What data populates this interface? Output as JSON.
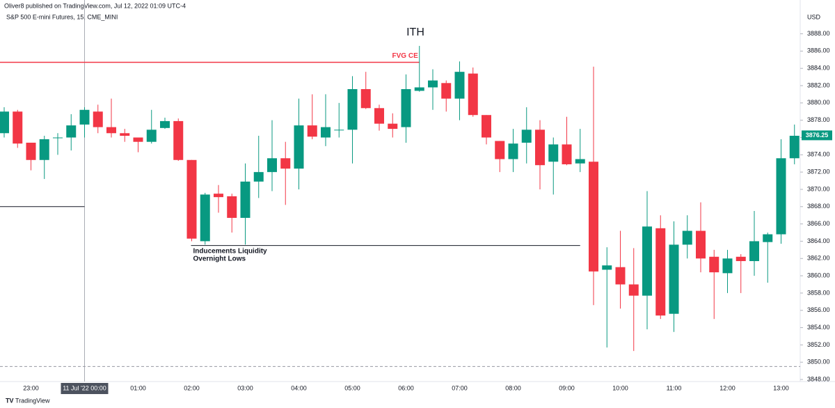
{
  "chart_data": {
    "type": "candlestick",
    "header": "Oliver8 published on TradingView.com, Jul 12, 2022 01:09 UTC-4",
    "subtitle": "S&P 500 E-mini Futures, 15, CME_MINI",
    "title": "ITH",
    "currency": "USD",
    "footer": "TradingView",
    "up_color": "#089981",
    "down_color": "#f23645",
    "grid": false,
    "categories": [
      null,
      null,
      "23:00",
      null,
      null,
      null,
      "00:00",
      null,
      null,
      null,
      "01:00",
      null,
      null,
      null,
      "02:00",
      null,
      null,
      null,
      "03:00",
      null,
      null,
      null,
      "04:00",
      null,
      null,
      null,
      "05:00",
      null,
      null,
      null,
      "06:00",
      null,
      null,
      null,
      "07:00",
      null,
      null,
      null,
      "08:00",
      null,
      null,
      null,
      "09:00",
      null,
      null,
      null,
      "10:00",
      null,
      null,
      null,
      "11:00",
      null,
      null,
      null,
      "12:00",
      null,
      null,
      null,
      "13:00",
      null
    ],
    "open": [
      3876.5,
      3879,
      3875.4,
      3873.4,
      3876,
      3876,
      3877.5,
      3879,
      3877.2,
      3876.5,
      3876,
      3875.5,
      3877.1,
      3877.9,
      3873.4,
      3864,
      3869.5,
      3869.2,
      3866.7,
      3870.9,
      3872,
      3873.6,
      3872.4,
      3877.4,
      3876,
      3876.9,
      3876.9,
      3881.6,
      3879.4,
      3877.6,
      3877.2,
      3881.4,
      3881.8,
      3882.3,
      3880.5,
      3883.4,
      3878.6,
      3875.6,
      3873.5,
      3875.4,
      3876.9,
      3873.2,
      3875.2,
      3873,
      3873.2,
      3860.7,
      3861,
      3859,
      3857.7,
      3865.5,
      3855.6,
      3863.6,
      3865.2,
      3862.2,
      3860.3,
      3862.2,
      3861.7,
      3863.9,
      3864.8,
      3873.6
    ],
    "high": [
      3879.5,
      3879.2,
      3875.4,
      3876.2,
      3876.5,
      3878.7,
      3879.5,
      3879.8,
      3880.5,
      3877,
      3876,
      3879.2,
      3878.3,
      3878.2,
      3873.4,
      3869.6,
      3870.5,
      3869.5,
      3873,
      3876.2,
      3878,
      3875.5,
      3880.5,
      3881,
      3881,
      3880,
      3883.1,
      3883.6,
      3879.8,
      3878.8,
      3883.3,
      3886.6,
      3883.9,
      3882.6,
      3884.8,
      3884.1,
      3878.6,
      3875.6,
      3877,
      3879.5,
      3878,
      3876,
      3878.4,
      3877,
      3884.2,
      3863.3,
      3865.2,
      3863.2,
      3869.8,
      3867,
      3866.3,
      3867,
      3868.5,
      3863,
      3863,
      3862.5,
      3867.5,
      3865,
      3875.8,
      3877.5
    ],
    "low": [
      3876,
      3874.8,
      3872.2,
      3871.2,
      3874,
      3874.5,
      3876,
      3876.5,
      3876,
      3875.5,
      3874.3,
      3875.3,
      3877,
      3873.3,
      3864,
      3863.6,
      3867.3,
      3865,
      3863.6,
      3869,
      3869.8,
      3868.2,
      3870,
      3875.8,
      3875,
      3876,
      3873,
      3879.3,
      3876.8,
      3876,
      3875.4,
      3881.3,
      3879.2,
      3879,
      3878,
      3878.4,
      3875.2,
      3872,
      3872,
      3873,
      3870,
      3869.4,
      3872.8,
      3872,
      3856.6,
      3851.7,
      3856.2,
      3851.3,
      3853.8,
      3855,
      3853.5,
      3862,
      3860.4,
      3855,
      3858,
      3858,
      3860,
      3859.2,
      3863.7,
      3872.9
    ],
    "close": [
      3879,
      3875.3,
      3873.4,
      3875.8,
      3876,
      3877.4,
      3879.2,
      3877.2,
      3876.5,
      3876.2,
      3875.5,
      3876.9,
      3877.9,
      3873.4,
      3864.3,
      3869.4,
      3869.1,
      3866.7,
      3870.9,
      3872,
      3873.6,
      3872.4,
      3877.4,
      3876.1,
      3877.2,
      3876.9,
      3881.6,
      3879.4,
      3877.6,
      3877,
      3881.6,
      3881.8,
      3882.6,
      3880.5,
      3883.6,
      3878.6,
      3876,
      3873.5,
      3875.3,
      3876.9,
      3872.8,
      3875.2,
      3872.9,
      3873.5,
      3860.5,
      3861.2,
      3859,
      3857.7,
      3865.7,
      3855.4,
      3863.6,
      3865.2,
      3862,
      3860.4,
      3862,
      3861.7,
      3864,
      3864.8,
      3873.6,
      3876.2
    ],
    "ylim": [
      3847.6,
      3890.3
    ],
    "yticks": [
      {
        "value": 3848,
        "label": "3848.00"
      },
      {
        "value": 3850,
        "label": "3850.00"
      },
      {
        "value": 3852,
        "label": "3852.00"
      },
      {
        "value": 3854,
        "label": "3854.00"
      },
      {
        "value": 3856,
        "label": "3856.00"
      },
      {
        "value": 3858,
        "label": "3858.00"
      },
      {
        "value": 3860,
        "label": "3860.00"
      },
      {
        "value": 3862,
        "label": "3862.00"
      },
      {
        "value": 3864,
        "label": "3864.00"
      },
      {
        "value": 3866,
        "label": "3866.00"
      },
      {
        "value": 3868,
        "label": "3868.00"
      },
      {
        "value": 3870,
        "label": "3870.00"
      },
      {
        "value": 3872,
        "label": "3872.00"
      },
      {
        "value": 3874,
        "label": "3874.00"
      },
      {
        "value": 3876,
        "label": "3876.00"
      },
      {
        "value": 3878,
        "label": "3878.00"
      },
      {
        "value": 3880,
        "label": "3880.00"
      },
      {
        "value": 3882,
        "label": "3882.00"
      },
      {
        "value": 3884,
        "label": "3884.00"
      },
      {
        "value": 3886,
        "label": "3886.00"
      },
      {
        "value": 3888,
        "label": "3888.00"
      }
    ],
    "last_price": 3876.25,
    "levels": [
      {
        "label": "FVG CE",
        "value": 3884.7,
        "color": "#f23645"
      },
      {
        "value": 3868,
        "color": "#131722"
      },
      {
        "label": "Inducements Liquidity",
        "label2": "Overnight Lows",
        "value": 3863.5,
        "color": "#131722"
      },
      {
        "value": 3849.5,
        "color": "#9598a1"
      }
    ],
    "crosshair_label": "11 Jul '22  00:00"
  }
}
